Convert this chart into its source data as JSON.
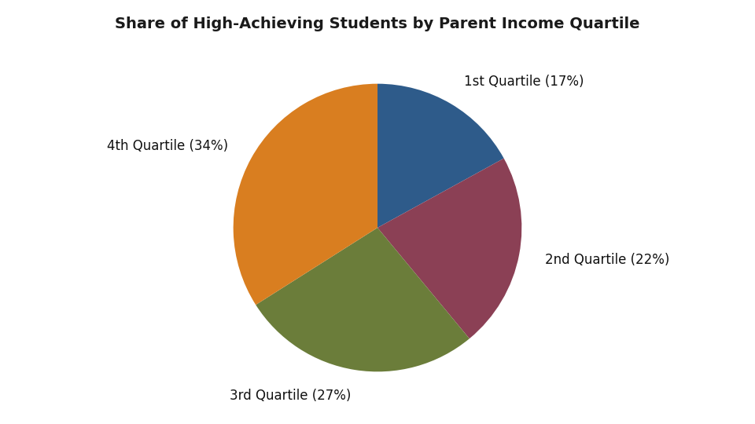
{
  "title": "Share of High-Achieving Students by Parent Income Quartile",
  "labels": [
    "1st Quartile (17%)",
    "2nd Quartile (22%)",
    "3rd Quartile (27%)",
    "4th Quartile (34%)"
  ],
  "values": [
    17,
    22,
    27,
    34
  ],
  "colors": [
    "#2E5B8A",
    "#8B4055",
    "#6B7D3A",
    "#D97E20"
  ],
  "startangle": 90,
  "counterclock": false,
  "title_fontsize": 14,
  "label_fontsize": 12,
  "background_color": "#ffffff",
  "labeldistance": 1.18
}
